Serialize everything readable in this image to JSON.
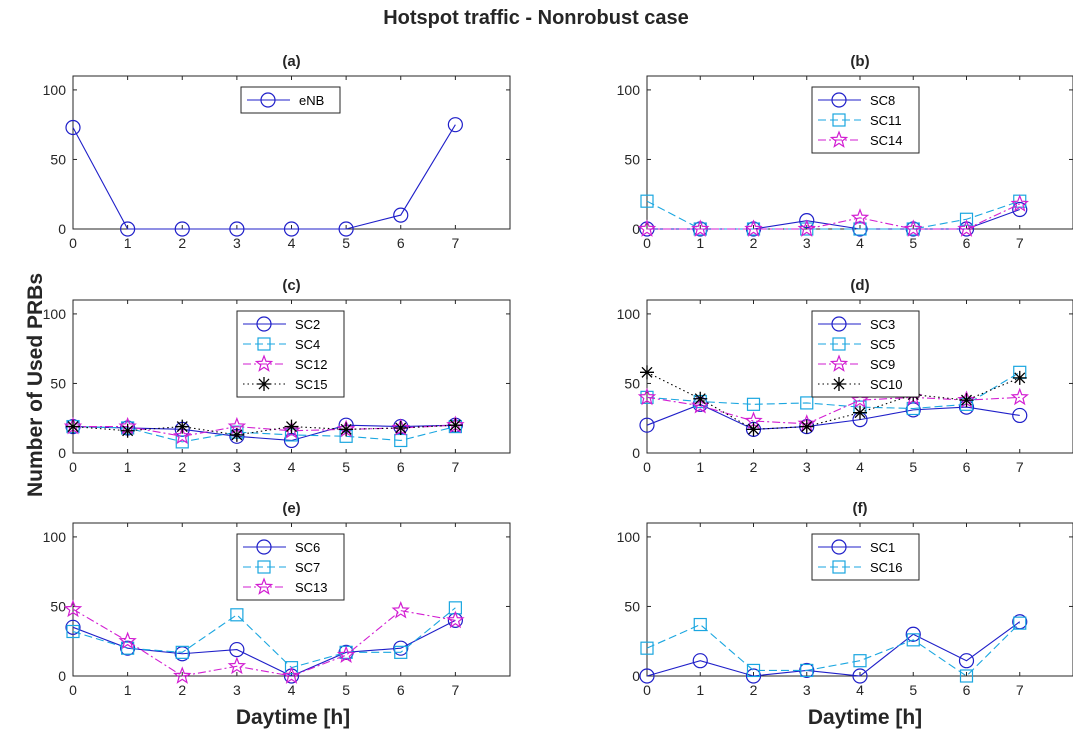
{
  "figure": {
    "title": "Hotspot traffic - Nonrobust case",
    "ylabel": "Number of Used PRBs",
    "xlabel": "Daytime [h]"
  },
  "colors": {
    "series_purple": "#1f1fc9",
    "series_cyan": "#1aa6e0",
    "series_magenta": "#d21ed2",
    "series_black": "#000000",
    "axis": "#262626"
  },
  "chart_data": [
    {
      "type": "line",
      "title": "(a)",
      "x": [
        0,
        1,
        2,
        3,
        4,
        5,
        6,
        7
      ],
      "xlim": [
        0,
        8
      ],
      "ylim": [
        0,
        110
      ],
      "xticks": [
        "0",
        "1",
        "2",
        "3",
        "4",
        "5",
        "6",
        "7"
      ],
      "yticks": [
        "0",
        "50",
        "100"
      ],
      "legend": "top-center",
      "series": [
        {
          "name": "eNB",
          "marker": "circle",
          "line": "solid",
          "color": "purple",
          "values": [
            73,
            0,
            0,
            0,
            0,
            0,
            10,
            75
          ]
        }
      ]
    },
    {
      "type": "line",
      "title": "(b)",
      "x": [
        0,
        1,
        2,
        3,
        4,
        5,
        6,
        7
      ],
      "xlim": [
        0,
        8
      ],
      "ylim": [
        0,
        110
      ],
      "xticks": [
        "0",
        "1",
        "2",
        "3",
        "4",
        "5",
        "6",
        "7"
      ],
      "yticks": [
        "0",
        "50",
        "100"
      ],
      "legend": "top-center",
      "series": [
        {
          "name": "SC8",
          "marker": "circle",
          "line": "solid",
          "color": "purple",
          "values": [
            0,
            0,
            0,
            6,
            0,
            0,
            0,
            14
          ]
        },
        {
          "name": "SC11",
          "marker": "square",
          "line": "dashed",
          "color": "cyan",
          "values": [
            20,
            0,
            0,
            0,
            0,
            0,
            7,
            20
          ]
        },
        {
          "name": "SC14",
          "marker": "star",
          "line": "dashdot",
          "color": "magenta",
          "values": [
            0,
            0,
            0,
            0,
            8,
            0,
            0,
            18
          ]
        }
      ]
    },
    {
      "type": "line",
      "title": "(c)",
      "x": [
        0,
        1,
        2,
        3,
        4,
        5,
        6,
        7
      ],
      "xlim": [
        0,
        8
      ],
      "ylim": [
        0,
        110
      ],
      "xticks": [
        "0",
        "1",
        "2",
        "3",
        "4",
        "5",
        "6",
        "7"
      ],
      "yticks": [
        "0",
        "50",
        "100"
      ],
      "legend": "top-center",
      "series": [
        {
          "name": "SC2",
          "marker": "circle",
          "line": "solid",
          "color": "purple",
          "values": [
            19,
            18,
            17,
            12,
            9,
            20,
            19,
            20
          ]
        },
        {
          "name": "SC4",
          "marker": "square",
          "line": "dashed",
          "color": "cyan",
          "values": [
            19,
            18,
            8,
            15,
            13,
            12,
            9,
            19
          ]
        },
        {
          "name": "SC12",
          "marker": "star",
          "line": "dashdot",
          "color": "magenta",
          "values": [
            19,
            19,
            12,
            19,
            16,
            17,
            18,
            20
          ]
        },
        {
          "name": "SC15",
          "marker": "asterisk",
          "line": "dotted",
          "color": "black",
          "values": [
            19,
            16,
            19,
            13,
            19,
            17,
            18,
            20
          ]
        }
      ]
    },
    {
      "type": "line",
      "title": "(d)",
      "x": [
        0,
        1,
        2,
        3,
        4,
        5,
        6,
        7
      ],
      "xlim": [
        0,
        8
      ],
      "ylim": [
        0,
        110
      ],
      "xticks": [
        "0",
        "1",
        "2",
        "3",
        "4",
        "5",
        "6",
        "7"
      ],
      "yticks": [
        "0",
        "50",
        "100"
      ],
      "legend": "top-center",
      "series": [
        {
          "name": "SC3",
          "marker": "circle",
          "line": "solid",
          "color": "purple",
          "values": [
            20,
            35,
            17,
            19,
            24,
            31,
            33,
            27
          ]
        },
        {
          "name": "SC5",
          "marker": "square",
          "line": "dashed",
          "color": "cyan",
          "values": [
            40,
            37,
            35,
            36,
            33,
            32,
            35,
            58
          ]
        },
        {
          "name": "SC9",
          "marker": "star",
          "line": "dashdot",
          "color": "magenta",
          "values": [
            40,
            34,
            23,
            21,
            38,
            40,
            38,
            40
          ]
        },
        {
          "name": "SC10",
          "marker": "asterisk",
          "line": "dotted",
          "color": "black",
          "values": [
            58,
            39,
            17,
            19,
            29,
            42,
            38,
            54
          ]
        }
      ]
    },
    {
      "type": "line",
      "title": "(e)",
      "x": [
        0,
        1,
        2,
        3,
        4,
        5,
        6,
        7
      ],
      "xlim": [
        0,
        8
      ],
      "ylim": [
        0,
        110
      ],
      "xticks": [
        "0",
        "1",
        "2",
        "3",
        "4",
        "5",
        "6",
        "7"
      ],
      "yticks": [
        "0",
        "50",
        "100"
      ],
      "legend": "top-center",
      "series": [
        {
          "name": "SC6",
          "marker": "circle",
          "line": "solid",
          "color": "purple",
          "values": [
            35,
            20,
            16,
            19,
            0,
            17,
            20,
            40
          ]
        },
        {
          "name": "SC7",
          "marker": "square",
          "line": "dashed",
          "color": "cyan",
          "values": [
            32,
            20,
            17,
            44,
            6,
            17,
            17,
            49
          ]
        },
        {
          "name": "SC13",
          "marker": "star",
          "line": "dashdot",
          "color": "magenta",
          "values": [
            48,
            25,
            0,
            7,
            0,
            15,
            47,
            40
          ]
        }
      ]
    },
    {
      "type": "line",
      "title": "(f)",
      "x": [
        0,
        1,
        2,
        3,
        4,
        5,
        6,
        7
      ],
      "xlim": [
        0,
        8
      ],
      "ylim": [
        0,
        110
      ],
      "xticks": [
        "0",
        "1",
        "2",
        "3",
        "4",
        "5",
        "6",
        "7"
      ],
      "yticks": [
        "0",
        "50",
        "100"
      ],
      "legend": "top-center",
      "series": [
        {
          "name": "SC1",
          "marker": "circle",
          "line": "solid",
          "color": "purple",
          "values": [
            0,
            11,
            0,
            4,
            0,
            30,
            11,
            39
          ]
        },
        {
          "name": "SC16",
          "marker": "square",
          "line": "dashed",
          "color": "cyan",
          "values": [
            20,
            37,
            4,
            4,
            11,
            26,
            0,
            38
          ]
        }
      ]
    }
  ]
}
